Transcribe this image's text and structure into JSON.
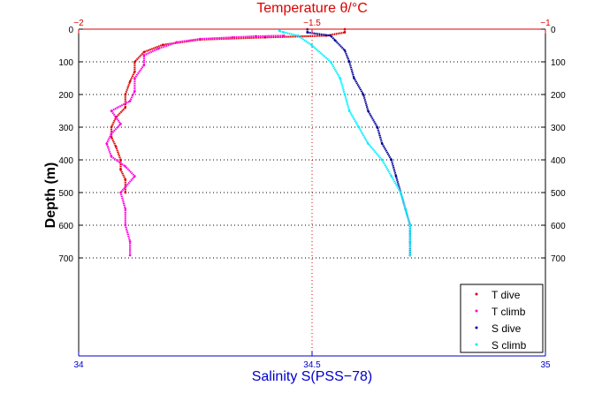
{
  "chart_data": {
    "type": "scatter",
    "title": "Temperature θ/°C",
    "xlabel": "Salinity S(PSS−78)",
    "ylabel": "Depth (m)",
    "ylim": [
      0,
      1000
    ],
    "y_reversed": true,
    "y_ticks": [
      0,
      100,
      200,
      300,
      400,
      500,
      600,
      700
    ],
    "x_bottom": {
      "label": "Salinity S(PSS−78)",
      "range": [
        34,
        35
      ],
      "ticks": [
        "34",
        "34.5",
        "35"
      ],
      "color": "#0000cc"
    },
    "x_top": {
      "label": "Temperature θ/°C",
      "range": [
        -2,
        -1
      ],
      "ticks": [
        "−2",
        "−1.5",
        "−1"
      ],
      "color": "#dd0000"
    },
    "grid": "dotted at x = 34.5 / −1.5 and every 100 m of depth",
    "legend": {
      "position": "bottom-right",
      "entries": [
        "T dive",
        "T climb",
        "S dive",
        "S climb"
      ]
    },
    "series": [
      {
        "name": "T dive",
        "axis": "top",
        "color": "#dd0000",
        "marker": "dot",
        "points": [
          [
            -1.43,
            0
          ],
          [
            -1.43,
            10
          ],
          [
            -1.47,
            20
          ],
          [
            -1.6,
            25
          ],
          [
            -1.74,
            32
          ],
          [
            -1.82,
            48
          ],
          [
            -1.86,
            70
          ],
          [
            -1.88,
            100
          ],
          [
            -1.88,
            130
          ],
          [
            -1.89,
            160
          ],
          [
            -1.9,
            200
          ],
          [
            -1.9,
            240
          ],
          [
            -1.92,
            270
          ],
          [
            -1.93,
            300
          ],
          [
            -1.93,
            330
          ],
          [
            -1.92,
            360
          ],
          [
            -1.91,
            400
          ],
          [
            -1.91,
            430
          ],
          [
            -1.9,
            460
          ],
          [
            -1.9,
            500
          ]
        ]
      },
      {
        "name": "T climb",
        "axis": "top",
        "color": "#ff00dd",
        "marker": "dot",
        "points": [
          [
            -1.89,
            692
          ],
          [
            -1.89,
            650
          ],
          [
            -1.9,
            600
          ],
          [
            -1.9,
            550
          ],
          [
            -1.91,
            500
          ],
          [
            -1.88,
            450
          ],
          [
            -1.9,
            420
          ],
          [
            -1.93,
            390
          ],
          [
            -1.94,
            350
          ],
          [
            -1.93,
            320
          ],
          [
            -1.91,
            290
          ],
          [
            -1.93,
            250
          ],
          [
            -1.89,
            220
          ],
          [
            -1.88,
            190
          ],
          [
            -1.88,
            150
          ],
          [
            -1.86,
            110
          ],
          [
            -1.86,
            80
          ],
          [
            -1.83,
            60
          ],
          [
            -1.79,
            40
          ],
          [
            -1.74,
            30
          ],
          [
            -1.67,
            25
          ],
          [
            -1.62,
            22
          ],
          [
            -1.56,
            20
          ]
        ]
      },
      {
        "name": "S dive",
        "axis": "bottom",
        "color": "#00009a",
        "marker": "dot",
        "points": [
          [
            34.49,
            0
          ],
          [
            34.49,
            10
          ],
          [
            34.54,
            20
          ],
          [
            34.55,
            35
          ],
          [
            34.57,
            65
          ],
          [
            34.58,
            100
          ],
          [
            34.59,
            150
          ],
          [
            34.61,
            200
          ],
          [
            34.62,
            250
          ],
          [
            34.64,
            300
          ],
          [
            34.65,
            350
          ],
          [
            34.67,
            400
          ],
          [
            34.68,
            450
          ],
          [
            34.69,
            500
          ],
          [
            34.7,
            550
          ],
          [
            34.71,
            600
          ],
          [
            34.71,
            650
          ],
          [
            34.71,
            692
          ]
        ]
      },
      {
        "name": "S climb",
        "axis": "bottom",
        "color": "#00eeff",
        "marker": "dot",
        "points": [
          [
            34.71,
            692
          ],
          [
            34.71,
            650
          ],
          [
            34.71,
            600
          ],
          [
            34.7,
            550
          ],
          [
            34.69,
            500
          ],
          [
            34.67,
            450
          ],
          [
            34.65,
            400
          ],
          [
            34.62,
            350
          ],
          [
            34.6,
            300
          ],
          [
            34.58,
            250
          ],
          [
            34.57,
            200
          ],
          [
            34.56,
            150
          ],
          [
            34.54,
            100
          ],
          [
            34.5,
            50
          ],
          [
            34.47,
            20
          ],
          [
            34.44,
            10
          ],
          [
            34.43,
            5
          ]
        ]
      }
    ]
  }
}
